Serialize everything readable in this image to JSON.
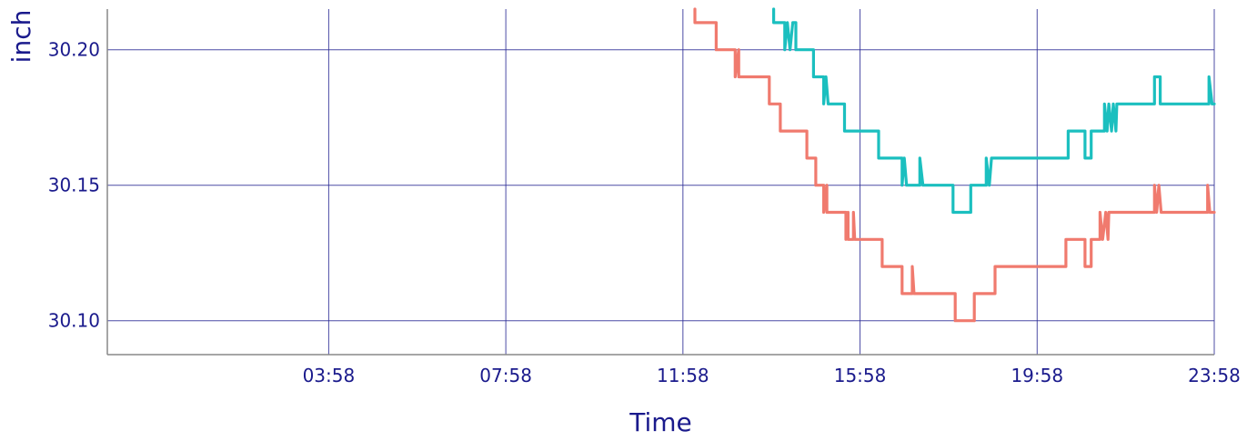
{
  "chart_data": {
    "type": "line",
    "xlabel": "Time",
    "ylabel": "inch",
    "x_range_hours": [
      -1,
      24
    ],
    "ylim": [
      30.0875,
      30.215
    ],
    "x_ticks": [
      {
        "label": "03:58",
        "hour": 4
      },
      {
        "label": "07:58",
        "hour": 8
      },
      {
        "label": "11:58",
        "hour": 12
      },
      {
        "label": "15:58",
        "hour": 16
      },
      {
        "label": "19:58",
        "hour": 20
      },
      {
        "label": "23:58",
        "hour": 24
      }
    ],
    "y_ticks": [
      {
        "label": "30.20",
        "value": 30.2
      },
      {
        "label": "30.15",
        "value": 30.15
      },
      {
        "label": "30.10",
        "value": 30.1
      }
    ],
    "grid": true,
    "series": [
      {
        "color": "#f07a6e",
        "points": [
          [
            12.27,
            30.215
          ],
          [
            12.27,
            30.21
          ],
          [
            12.75,
            30.21
          ],
          [
            12.75,
            30.2
          ],
          [
            13.18,
            30.2
          ],
          [
            13.18,
            30.19
          ],
          [
            13.26,
            30.2
          ],
          [
            13.26,
            30.19
          ],
          [
            13.95,
            30.19
          ],
          [
            13.95,
            30.18
          ],
          [
            14.2,
            30.18
          ],
          [
            14.2,
            30.17
          ],
          [
            14.8,
            30.17
          ],
          [
            14.8,
            30.16
          ],
          [
            15.0,
            30.16
          ],
          [
            15.0,
            30.15
          ],
          [
            15.18,
            30.15
          ],
          [
            15.18,
            30.14
          ],
          [
            15.25,
            30.15
          ],
          [
            15.25,
            30.14
          ],
          [
            15.68,
            30.14
          ],
          [
            15.68,
            30.13
          ],
          [
            15.73,
            30.14
          ],
          [
            15.73,
            30.13
          ],
          [
            15.85,
            30.13
          ],
          [
            15.85,
            30.14
          ],
          [
            15.88,
            30.13
          ],
          [
            16.5,
            30.13
          ],
          [
            16.5,
            30.12
          ],
          [
            16.95,
            30.12
          ],
          [
            16.95,
            30.11
          ],
          [
            17.18,
            30.11
          ],
          [
            17.18,
            30.12
          ],
          [
            17.22,
            30.11
          ],
          [
            18.15,
            30.11
          ],
          [
            18.15,
            30.1
          ],
          [
            18.58,
            30.1
          ],
          [
            18.58,
            30.11
          ],
          [
            19.05,
            30.11
          ],
          [
            19.05,
            30.12
          ],
          [
            20.65,
            30.12
          ],
          [
            20.65,
            30.13
          ],
          [
            21.08,
            30.13
          ],
          [
            21.08,
            30.12
          ],
          [
            21.22,
            30.12
          ],
          [
            21.22,
            30.13
          ],
          [
            21.42,
            30.13
          ],
          [
            21.42,
            30.14
          ],
          [
            21.48,
            30.13
          ],
          [
            21.55,
            30.14
          ],
          [
            21.6,
            30.13
          ],
          [
            21.62,
            30.14
          ],
          [
            22.65,
            30.14
          ],
          [
            22.65,
            30.15
          ],
          [
            22.7,
            30.14
          ],
          [
            22.75,
            30.15
          ],
          [
            22.8,
            30.14
          ],
          [
            23.85,
            30.14
          ],
          [
            23.85,
            30.15
          ],
          [
            23.9,
            30.14
          ],
          [
            24.0,
            30.14
          ]
        ]
      },
      {
        "color": "#1bbfbf",
        "points": [
          [
            14.05,
            30.215
          ],
          [
            14.05,
            30.21
          ],
          [
            14.3,
            30.21
          ],
          [
            14.3,
            30.2
          ],
          [
            14.36,
            30.21
          ],
          [
            14.42,
            30.2
          ],
          [
            14.48,
            30.21
          ],
          [
            14.55,
            30.21
          ],
          [
            14.55,
            30.2
          ],
          [
            14.95,
            30.2
          ],
          [
            14.95,
            30.19
          ],
          [
            15.18,
            30.19
          ],
          [
            15.18,
            30.18
          ],
          [
            15.23,
            30.19
          ],
          [
            15.28,
            30.18
          ],
          [
            15.65,
            30.18
          ],
          [
            15.65,
            30.17
          ],
          [
            16.42,
            30.17
          ],
          [
            16.42,
            30.16
          ],
          [
            16.95,
            30.16
          ],
          [
            16.95,
            30.15
          ],
          [
            17.0,
            30.16
          ],
          [
            17.05,
            30.15
          ],
          [
            17.35,
            30.15
          ],
          [
            17.35,
            30.16
          ],
          [
            17.42,
            30.15
          ],
          [
            18.1,
            30.15
          ],
          [
            18.1,
            30.14
          ],
          [
            18.5,
            30.14
          ],
          [
            18.5,
            30.15
          ],
          [
            18.85,
            30.15
          ],
          [
            18.85,
            30.16
          ],
          [
            18.92,
            30.15
          ],
          [
            18.97,
            30.16
          ],
          [
            20.7,
            30.16
          ],
          [
            20.7,
            30.17
          ],
          [
            21.08,
            30.17
          ],
          [
            21.08,
            30.16
          ],
          [
            21.22,
            30.16
          ],
          [
            21.22,
            30.17
          ],
          [
            21.52,
            30.17
          ],
          [
            21.52,
            30.18
          ],
          [
            21.58,
            30.17
          ],
          [
            21.62,
            30.18
          ],
          [
            21.68,
            30.17
          ],
          [
            21.72,
            30.18
          ],
          [
            21.78,
            30.17
          ],
          [
            21.8,
            30.18
          ],
          [
            22.65,
            30.18
          ],
          [
            22.65,
            30.19
          ],
          [
            22.78,
            30.19
          ],
          [
            22.78,
            30.18
          ],
          [
            23.88,
            30.18
          ],
          [
            23.88,
            30.19
          ],
          [
            23.95,
            30.18
          ],
          [
            24.0,
            30.18
          ]
        ]
      }
    ]
  }
}
